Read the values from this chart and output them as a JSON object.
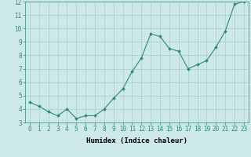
{
  "x": [
    0,
    1,
    2,
    3,
    4,
    5,
    6,
    7,
    8,
    9,
    10,
    11,
    12,
    13,
    14,
    15,
    16,
    17,
    18,
    19,
    20,
    21,
    22,
    23
  ],
  "y": [
    4.5,
    4.2,
    3.8,
    3.5,
    4.0,
    3.3,
    3.5,
    3.5,
    4.0,
    4.8,
    5.5,
    6.8,
    7.8,
    9.6,
    9.4,
    8.5,
    8.3,
    7.0,
    7.3,
    7.6,
    8.6,
    9.8,
    11.8,
    12.0
  ],
  "line_color": "#2a8a7e",
  "marker": "D",
  "marker_size": 2.0,
  "xlabel": "Humidex (Indice chaleur)",
  "xlim": [
    -0.5,
    23.5
  ],
  "ylim": [
    3,
    12
  ],
  "yticks": [
    3,
    4,
    5,
    6,
    7,
    8,
    9,
    10,
    11,
    12
  ],
  "xticks": [
    0,
    1,
    2,
    3,
    4,
    5,
    6,
    7,
    8,
    9,
    10,
    11,
    12,
    13,
    14,
    15,
    16,
    17,
    18,
    19,
    20,
    21,
    22,
    23
  ],
  "bg_color": "#cce8e8",
  "grid_color": "#aacece",
  "tick_label_fontsize": 5.5,
  "xlabel_fontsize": 6.5,
  "linewidth": 0.8
}
